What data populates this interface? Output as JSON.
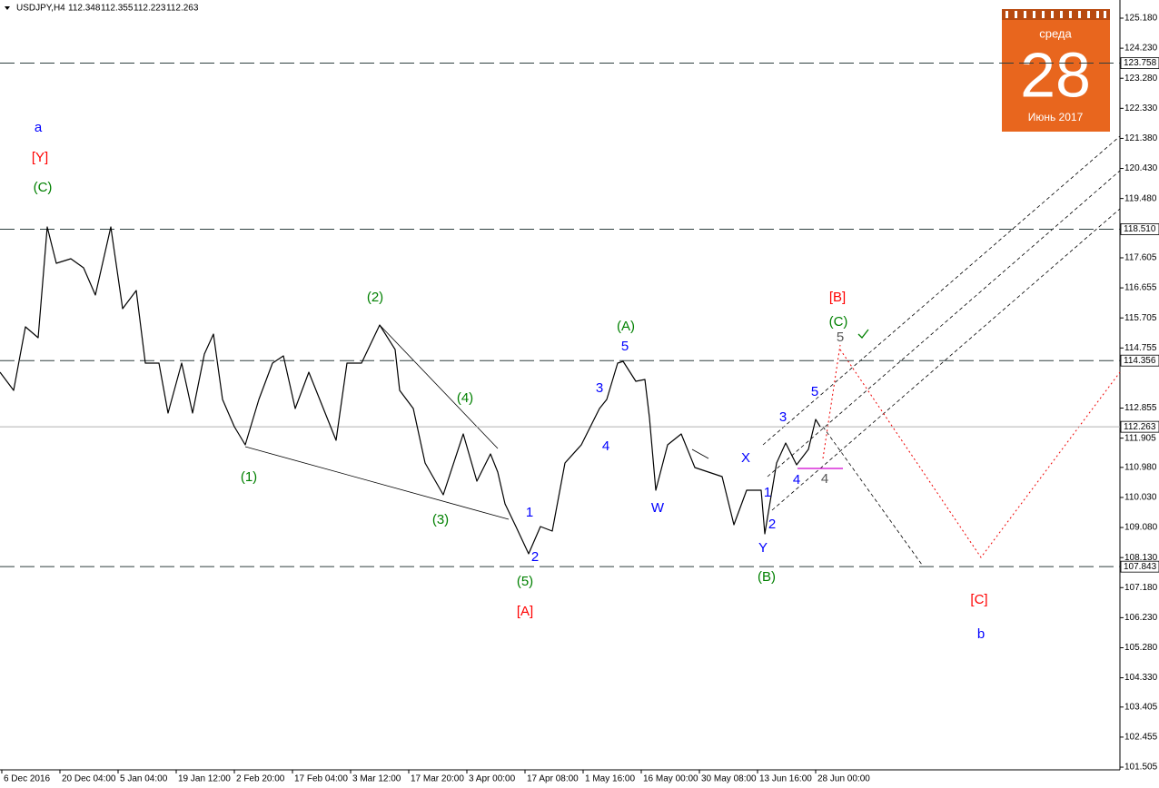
{
  "header": {
    "symbol": "USDJPY,H4",
    "ohlc": [
      112.348,
      112.355,
      112.223,
      112.263
    ]
  },
  "calendar": {
    "weekday": "среда",
    "day": "28",
    "month": "Июнь 2017"
  },
  "chart_data": {
    "type": "line",
    "color": "#000000",
    "x": [
      -0.031,
      0.203,
      0.406,
      0.625,
      0.781,
      0.938,
      1.188,
      1.406,
      1.609,
      1.875,
      2.078,
      2.313,
      2.469,
      2.703,
      2.859,
      3.094,
      3.281,
      3.484,
      3.641,
      3.797,
      4.0,
      4.188,
      4.422,
      4.656,
      4.844,
      5.047,
      5.281,
      5.531,
      5.75,
      5.938,
      6.188,
      6.5,
      6.766,
      6.844,
      7.078,
      7.281,
      7.594,
      7.938,
      8.172,
      8.406,
      8.531,
      8.656,
      8.844,
      9.063,
      9.266,
      9.469,
      9.688,
      9.969,
      10.281,
      10.406,
      10.594,
      10.688,
      10.906,
      11.063,
      11.141,
      11.25,
      11.453,
      11.688,
      11.922,
      12.156,
      12.391,
      12.594,
      12.813,
      13.063,
      13.125,
      13.328,
      13.484,
      13.672,
      13.875,
      14.0,
      14.078
    ],
    "values": [
      113.989,
      113.415,
      115.424,
      115.08,
      118.58,
      117.433,
      117.576,
      117.289,
      116.428,
      118.58,
      115.998,
      116.572,
      114.276,
      114.276,
      112.698,
      114.276,
      112.698,
      114.563,
      115.194,
      113.128,
      112.268,
      111.694,
      113.128,
      114.276,
      114.506,
      112.842,
      113.989,
      112.842,
      111.837,
      114.276,
      114.276,
      115.481,
      114.707,
      113.415,
      112.842,
      111.12,
      110.116,
      112.038,
      110.546,
      111.407,
      110.833,
      109.829,
      109.111,
      108.25,
      109.111,
      108.968,
      111.12,
      111.694,
      112.842,
      113.128,
      114.276,
      114.334,
      113.702,
      113.76,
      112.555,
      110.259,
      111.694,
      112.038,
      110.976,
      110.833,
      110.689,
      109.169,
      110.259,
      110.259,
      108.882,
      111.12,
      111.751,
      111.062,
      111.55,
      112.497,
      112.263
    ],
    "xlim": [
      -0.031,
      19.234
    ],
    "ylim": [
      101.42,
      125.754
    ],
    "xticks": [
      {
        "value": 0,
        "label": "6 Dec 2016"
      },
      {
        "value": 1,
        "label": "20 Dec 04:00"
      },
      {
        "value": 2,
        "label": "5 Jan 04:00"
      },
      {
        "value": 3,
        "label": "19 Jan 12:00"
      },
      {
        "value": 4,
        "label": "2 Feb 20:00"
      },
      {
        "value": 5,
        "label": "17 Feb 04:00"
      },
      {
        "value": 6,
        "label": "3 Mar 12:00"
      },
      {
        "value": 7,
        "label": "17 Mar 20:00"
      },
      {
        "value": 8,
        "label": "3 Apr 00:00"
      },
      {
        "value": 9,
        "label": "17 Apr 08:00"
      },
      {
        "value": 10,
        "label": "1 May 16:00"
      },
      {
        "value": 11,
        "label": "16 May 00:00"
      },
      {
        "value": 12,
        "label": "30 May 08:00"
      },
      {
        "value": 13,
        "label": "13 Jun 16:00"
      },
      {
        "value": 14,
        "label": "28 Jun 00:00"
      }
    ],
    "yticks": [
      {
        "value": 125.18,
        "label": "125.180"
      },
      {
        "value": 124.23,
        "label": "124.230"
      },
      {
        "value": 123.28,
        "label": "123.280"
      },
      {
        "value": 122.33,
        "label": "122.330"
      },
      {
        "value": 121.38,
        "label": "121.380"
      },
      {
        "value": 120.43,
        "label": "120.430"
      },
      {
        "value": 119.48,
        "label": "119.480"
      },
      117.605,
      116.655,
      115.705,
      114.755,
      112.855,
      111.905,
      {
        "value": 110.98,
        "label": "110.980"
      },
      {
        "value": 110.03,
        "label": "110.030"
      },
      {
        "value": 109.08,
        "label": "109.080"
      },
      {
        "value": 108.13,
        "label": "108.130"
      },
      {
        "value": 107.18,
        "label": "107.180"
      },
      {
        "value": 106.23,
        "label": "106.230"
      },
      {
        "value": 105.28,
        "label": "105.280"
      },
      {
        "value": 104.33,
        "label": "104.330"
      },
      103.405,
      102.455,
      101.505
    ],
    "levels": [
      123.758,
      {
        "value": 118.51,
        "label": "118.510"
      },
      114.356,
      107.843
    ],
    "price_line": 112.263,
    "annotations": [
      {
        "text": "a",
        "color": "#0000ff"
      },
      {
        "text": "[Y]",
        "color": "#ff0000"
      },
      {
        "text": "(C)",
        "color": "#008000"
      },
      {
        "text": "(1)",
        "color": "#008000"
      },
      {
        "text": "(2)",
        "color": "#008000"
      },
      {
        "text": "(3)",
        "color": "#008000"
      },
      {
        "text": "(4)",
        "color": "#008000"
      },
      {
        "text": "(5)",
        "color": "#008000"
      },
      {
        "text": "[A]",
        "color": "#ff0000"
      },
      {
        "text": "1",
        "color": "#0000ff"
      },
      {
        "text": "2",
        "color": "#0000ff"
      },
      {
        "text": "3",
        "color": "#0000ff"
      },
      {
        "text": "4",
        "color": "#0000ff"
      },
      {
        "text": "5",
        "color": "#0000ff"
      },
      {
        "text": "(A)",
        "color": "#008000"
      },
      {
        "text": "W",
        "color": "#0000ff"
      },
      {
        "text": "X",
        "color": "#0000ff"
      },
      {
        "text": "Y",
        "color": "#0000ff"
      },
      {
        "text": "(B)",
        "color": "#008000"
      },
      {
        "text": "1",
        "color": "#0000ff"
      },
      {
        "text": "2",
        "color": "#0000ff"
      },
      {
        "text": "3",
        "color": "#0000ff"
      },
      {
        "text": "4",
        "color": "#0000ff"
      },
      {
        "text": "4",
        "color": "#555555"
      },
      {
        "text": "5",
        "color": "#0000ff"
      },
      {
        "text": "5",
        "color": "#555555"
      },
      {
        "text": "(C)",
        "color": "#008000"
      },
      {
        "text": "[B]",
        "color": "#ff0000"
      },
      {
        "text": "[C]",
        "color": "#ff0000"
      },
      {
        "text": "b",
        "color": "#0000ff"
      }
    ]
  }
}
